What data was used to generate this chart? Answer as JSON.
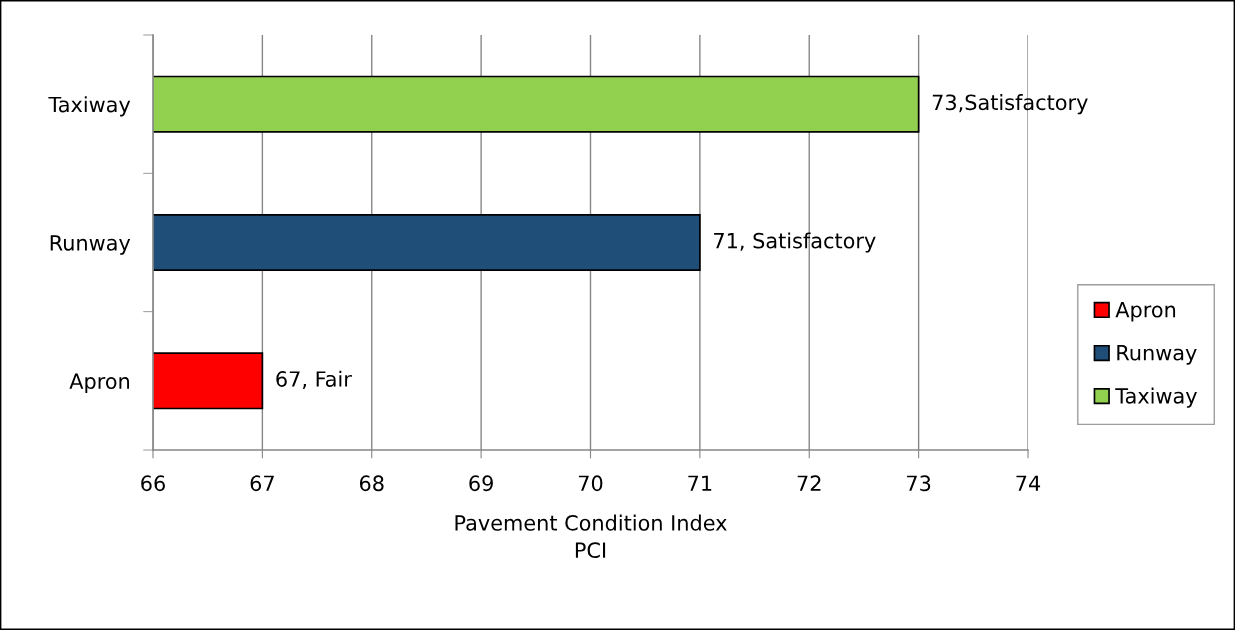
{
  "chart_data": {
    "type": "bar",
    "orientation": "horizontal",
    "stacked": true,
    "categories": [
      "Taxiway",
      "Runway",
      "Apron"
    ],
    "series": [
      {
        "name": "Apron",
        "color": "#ff0000",
        "values": [
          null,
          null,
          67
        ],
        "value_labels": [
          null,
          null,
          "67, Fair"
        ]
      },
      {
        "name": "Runway",
        "color": "#1f4e79",
        "values": [
          null,
          71,
          null
        ],
        "value_labels": [
          null,
          "71, Satisfactory",
          null
        ]
      },
      {
        "name": "Taxiway",
        "color": "#92d050",
        "values": [
          73,
          null,
          null
        ],
        "value_labels": [
          "73,Satisfactory",
          null,
          null
        ]
      }
    ],
    "xlabel": "Pavement Condition Index\nPCI",
    "xlim": [
      66,
      74
    ],
    "xticks": [
      66,
      67,
      68,
      69,
      70,
      71,
      72,
      73,
      74
    ],
    "grid": "x",
    "legend": "right"
  }
}
